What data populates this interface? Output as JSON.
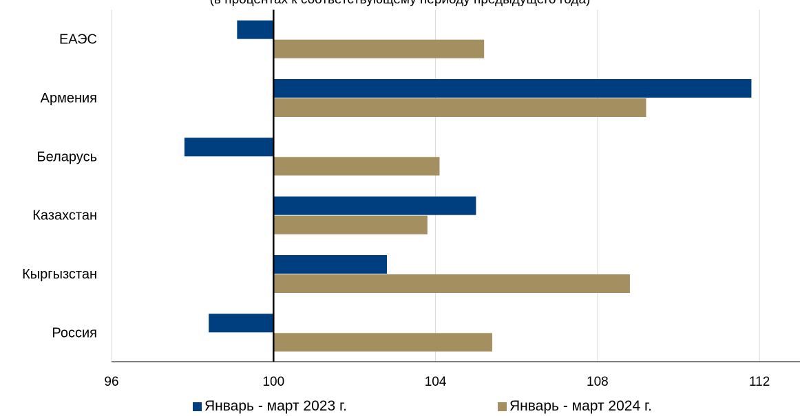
{
  "chart_data": {
    "type": "bar",
    "orientation": "horizontal",
    "title": "(в процентах к соответствующему периоду предыдущего года)",
    "categories": [
      "ЕАЭС",
      "Армения",
      "Беларусь",
      "Казахстан",
      "Кыргызстан",
      "Россия"
    ],
    "series": [
      {
        "name": "Январь - март 2023 г.",
        "color": "#003f7f",
        "values": [
          99.1,
          111.8,
          97.8,
          105.0,
          102.8,
          98.4
        ]
      },
      {
        "name": "Январь - март 2024 г.",
        "color": "#a38f60",
        "values": [
          105.2,
          109.2,
          104.1,
          103.8,
          108.8,
          105.4
        ]
      }
    ],
    "base_value": 100,
    "xlim": [
      96,
      113
    ],
    "x_ticks": [
      96,
      100,
      104,
      108,
      112
    ],
    "grid": true,
    "legend_position": "bottom"
  }
}
